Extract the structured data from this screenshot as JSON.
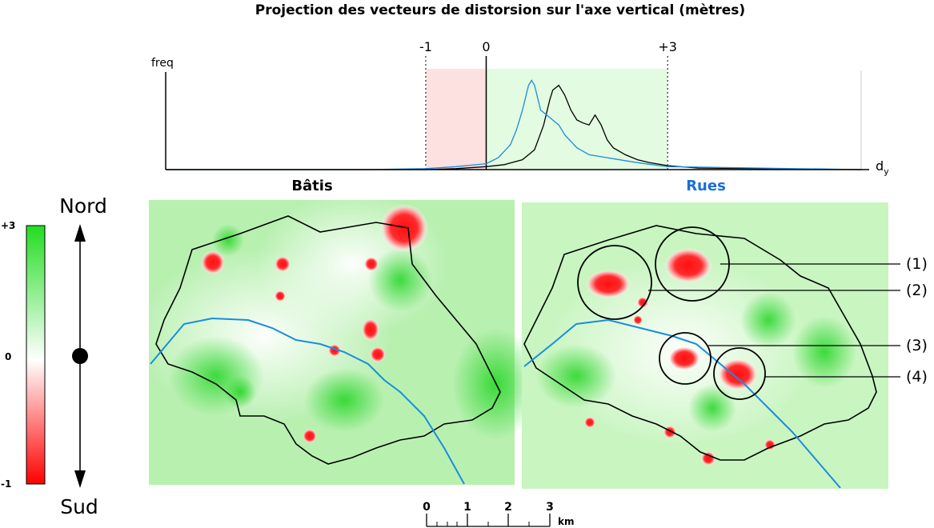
{
  "chart_data": [
    {
      "type": "line",
      "title": "Projection des vecteurs de distorsion sur l'axe vertical (mètres)",
      "ylabel": "freq",
      "xlabel": "d",
      "xlabel_sub": "y",
      "xticks": [
        "-1",
        "0",
        "+3"
      ],
      "xlim": [
        -5.3,
        6.2
      ],
      "ylim": [
        0,
        1
      ],
      "shaded_ranges": [
        {
          "from": -1,
          "to": 0,
          "color": "#fde0e0"
        },
        {
          "from": 0,
          "to": 3,
          "color": "#e3fbe0"
        }
      ],
      "series": [
        {
          "name": "Bâtis",
          "color": "#000000",
          "x": [
            -5.3,
            -3.0,
            -2.0,
            -1.0,
            -0.5,
            0.0,
            0.3,
            0.6,
            0.8,
            0.95,
            1.05,
            1.1,
            1.2,
            1.3,
            1.4,
            1.5,
            1.6,
            1.7,
            1.8,
            1.9,
            2.0,
            2.1,
            2.3,
            2.5,
            2.7,
            3.0,
            3.5,
            6.2
          ],
          "values": [
            0.0,
            0.0,
            0.0,
            0.0,
            0.01,
            0.03,
            0.05,
            0.1,
            0.2,
            0.45,
            0.7,
            0.8,
            0.85,
            0.75,
            0.6,
            0.5,
            0.47,
            0.45,
            0.55,
            0.45,
            0.3,
            0.22,
            0.15,
            0.1,
            0.07,
            0.04,
            0.015,
            0.0
          ]
        },
        {
          "name": "Rues",
          "color": "#1a8ce0",
          "x": [
            -5.3,
            -3.0,
            -2.0,
            -1.0,
            -0.5,
            0.0,
            0.2,
            0.4,
            0.5,
            0.6,
            0.7,
            0.75,
            0.8,
            0.9,
            1.0,
            1.1,
            1.2,
            1.3,
            1.5,
            1.7,
            2.0,
            2.5,
            3.0,
            6.2
          ],
          "values": [
            0.0,
            0.0,
            0.0,
            0.01,
            0.03,
            0.06,
            0.12,
            0.25,
            0.4,
            0.6,
            0.85,
            0.9,
            0.85,
            0.6,
            0.55,
            0.5,
            0.45,
            0.35,
            0.22,
            0.15,
            0.12,
            0.07,
            0.03,
            0.0
          ]
        }
      ]
    },
    {
      "type": "heatmap",
      "panels": [
        {
          "title": "Bâtis",
          "title_color": "#000000"
        },
        {
          "title": "Rues",
          "title_color": "#1a6fd6"
        }
      ],
      "colorbar": {
        "max_label": "+3",
        "mid_label": "0",
        "min_label": "-1",
        "max": 3,
        "min": -1,
        "top_color": "#22dd22",
        "mid_color": "#ffffff",
        "bottom_color": "#ff0000"
      },
      "compass": {
        "north": "Nord",
        "south": "Sud"
      },
      "circle_labels": [
        "(1)",
        "(2)",
        "(3)",
        "(4)"
      ],
      "scale_bar": {
        "ticks": [
          "0",
          "1",
          "2",
          "3"
        ],
        "unit": "km"
      }
    }
  ]
}
